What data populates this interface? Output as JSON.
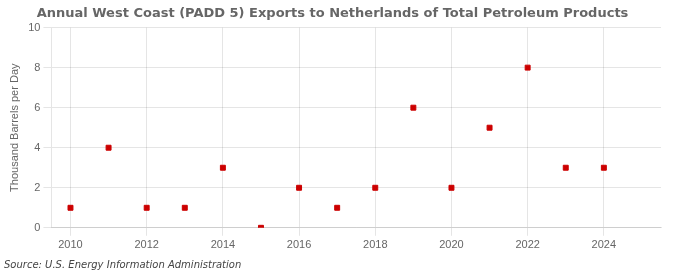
{
  "chart_data": {
    "type": "scatter",
    "title": "Annual West Coast (PADD 5) Exports to Netherlands of Total Petroleum Products",
    "ylabel": "Thousand Barrels per Day",
    "source": "Source: U.S. Energy Information Administration",
    "x": [
      2010,
      2011,
      2012,
      2013,
      2014,
      2015,
      2016,
      2017,
      2018,
      2019,
      2020,
      2021,
      2022,
      2023,
      2024
    ],
    "values": [
      1,
      4,
      1,
      1,
      3,
      0,
      2,
      1,
      2,
      6,
      2,
      5,
      8,
      3,
      3
    ],
    "color": "#cc0000",
    "marker": "square",
    "xlim": [
      2009.5,
      2025.5
    ],
    "ylim": [
      0,
      10
    ],
    "xticks": [
      2010,
      2012,
      2014,
      2016,
      2018,
      2020,
      2022,
      2024
    ],
    "yticks": [
      0,
      2,
      4,
      6,
      8,
      10
    ],
    "grid": true
  }
}
